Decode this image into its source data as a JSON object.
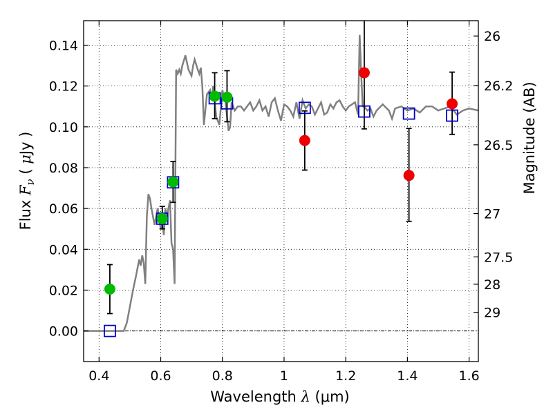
{
  "chart_data": {
    "type": "scatter",
    "xlabel": {
      "text": "Wavelength",
      "symbol": "λ",
      "unit": "(μm)"
    },
    "ylabel": {
      "text": "Flux",
      "symbol": "F",
      "subscript": "ν",
      "unit_open": "(",
      "unit_mu": "μ",
      "unit_rest": "Jy )"
    },
    "y2label": "Magnitude (AB)",
    "xlim": [
      0.35,
      1.63
    ],
    "ylim": [
      -0.015,
      0.152
    ],
    "grid": true,
    "x_ticks": [
      0.4,
      0.6,
      0.8,
      1.0,
      1.2,
      1.4,
      1.6
    ],
    "x_tick_labels": [
      "0.4",
      "0.6",
      "0.8",
      "1",
      "1.2",
      "1.4",
      "1.6"
    ],
    "y_ticks": [
      0.0,
      0.02,
      0.04,
      0.06,
      0.08,
      0.1,
      0.12,
      0.14
    ],
    "y_tick_labels": [
      "0.00",
      "0.02",
      "0.04",
      "0.06",
      "0.08",
      "0.10",
      "0.12",
      "0.14"
    ],
    "y2_ticks": [
      {
        "label": "26",
        "flux": 0.1445
      },
      {
        "label": "26.2",
        "flux": 0.1202
      },
      {
        "label": "26.5",
        "flux": 0.0912
      },
      {
        "label": "27",
        "flux": 0.0575
      },
      {
        "label": "27.5",
        "flux": 0.0363
      },
      {
        "label": "28",
        "flux": 0.0229
      },
      {
        "label": "29",
        "flux": 0.0091
      }
    ],
    "colors": {
      "model": "#808080",
      "green": "#00bb00",
      "red": "#ee0000",
      "blue": "#0000cc"
    },
    "model_spectrum": {
      "x": [
        0.35,
        0.48,
        0.49,
        0.51,
        0.52,
        0.53,
        0.535,
        0.54,
        0.545,
        0.55,
        0.555,
        0.56,
        0.565,
        0.57,
        0.58,
        0.59,
        0.6,
        0.605,
        0.61,
        0.615,
        0.62,
        0.63,
        0.635,
        0.64,
        0.645,
        0.65,
        0.655,
        0.66,
        0.665,
        0.67,
        0.68,
        0.69,
        0.7,
        0.705,
        0.71,
        0.72,
        0.725,
        0.73,
        0.735,
        0.74,
        0.75,
        0.76,
        0.765,
        0.77,
        0.78,
        0.79,
        0.8,
        0.81,
        0.82,
        0.825,
        0.83,
        0.84,
        0.85,
        0.86,
        0.87,
        0.88,
        0.89,
        0.9,
        0.91,
        0.92,
        0.93,
        0.94,
        0.95,
        0.96,
        0.97,
        0.98,
        0.99,
        1.0,
        1.01,
        1.02,
        1.03,
        1.04,
        1.05,
        1.06,
        1.07,
        1.08,
        1.09,
        1.1,
        1.11,
        1.12,
        1.13,
        1.14,
        1.15,
        1.16,
        1.17,
        1.18,
        1.19,
        1.2,
        1.21,
        1.22,
        1.23,
        1.24,
        1.245,
        1.25,
        1.255,
        1.26,
        1.27,
        1.28,
        1.29,
        1.3,
        1.32,
        1.34,
        1.35,
        1.36,
        1.38,
        1.4,
        1.42,
        1.44,
        1.46,
        1.48,
        1.5,
        1.52,
        1.54,
        1.56,
        1.58,
        1.6,
        1.63
      ],
      "y": [
        0.0,
        0.0,
        0.004,
        0.02,
        0.027,
        0.035,
        0.032,
        0.037,
        0.033,
        0.023,
        0.056,
        0.067,
        0.065,
        0.06,
        0.052,
        0.06,
        0.05,
        0.053,
        0.047,
        0.06,
        0.056,
        0.064,
        0.043,
        0.04,
        0.023,
        0.128,
        0.126,
        0.128,
        0.126,
        0.13,
        0.135,
        0.128,
        0.125,
        0.13,
        0.133,
        0.128,
        0.126,
        0.129,
        0.12,
        0.101,
        0.116,
        0.118,
        0.113,
        0.12,
        0.105,
        0.101,
        0.118,
        0.112,
        0.098,
        0.1,
        0.112,
        0.108,
        0.11,
        0.11,
        0.108,
        0.11,
        0.112,
        0.108,
        0.11,
        0.113,
        0.108,
        0.11,
        0.105,
        0.112,
        0.114,
        0.108,
        0.103,
        0.111,
        0.11,
        0.108,
        0.105,
        0.112,
        0.104,
        0.113,
        0.109,
        0.111,
        0.11,
        0.106,
        0.109,
        0.112,
        0.106,
        0.107,
        0.111,
        0.109,
        0.112,
        0.113,
        0.11,
        0.108,
        0.11,
        0.111,
        0.112,
        0.106,
        0.145,
        0.126,
        0.11,
        0.11,
        0.108,
        0.109,
        0.105,
        0.108,
        0.111,
        0.108,
        0.104,
        0.109,
        0.11,
        0.108,
        0.109,
        0.107,
        0.11,
        0.11,
        0.108,
        0.109,
        0.11,
        0.106,
        0.108,
        0.109,
        0.108
      ]
    },
    "series": [
      {
        "marker": "circle",
        "color": "green",
        "points": [
          {
            "x": 0.435,
            "y": 0.0205,
            "yerr_lo": 0.012,
            "yerr_hi": 0.012
          },
          {
            "x": 0.605,
            "y": 0.055,
            "yerr_lo": 0.005,
            "yerr_hi": 0.006
          },
          {
            "x": 0.64,
            "y": 0.073,
            "yerr_lo": 0.01,
            "yerr_hi": 0.01
          },
          {
            "x": 0.775,
            "y": 0.115,
            "yerr_lo": 0.011,
            "yerr_hi": 0.0115
          },
          {
            "x": 0.815,
            "y": 0.1145,
            "yerr_lo": 0.012,
            "yerr_hi": 0.013
          }
        ]
      },
      {
        "marker": "circle",
        "color": "red",
        "points": [
          {
            "x": 1.067,
            "y": 0.0933,
            "yerr_lo": 0.0145,
            "yerr_hi": 0.0145
          },
          {
            "x": 1.26,
            "y": 0.1265,
            "yerr_lo": 0.0275,
            "yerr_hi": 0.03
          },
          {
            "x": 1.405,
            "y": 0.0762,
            "yerr_lo": 0.0225,
            "yerr_hi": 0.023
          },
          {
            "x": 1.545,
            "y": 0.1113,
            "yerr_lo": 0.015,
            "yerr_hi": 0.0155
          }
        ]
      },
      {
        "marker": "square",
        "color": "blue",
        "points": [
          {
            "x": 0.435,
            "y": 0.0
          },
          {
            "x": 0.605,
            "y": 0.055
          },
          {
            "x": 0.64,
            "y": 0.0728
          },
          {
            "x": 0.775,
            "y": 0.114
          },
          {
            "x": 0.815,
            "y": 0.1115
          },
          {
            "x": 1.067,
            "y": 0.1093
          },
          {
            "x": 1.26,
            "y": 0.1075
          },
          {
            "x": 1.405,
            "y": 0.1065
          },
          {
            "x": 1.545,
            "y": 0.1055
          }
        ]
      }
    ]
  }
}
